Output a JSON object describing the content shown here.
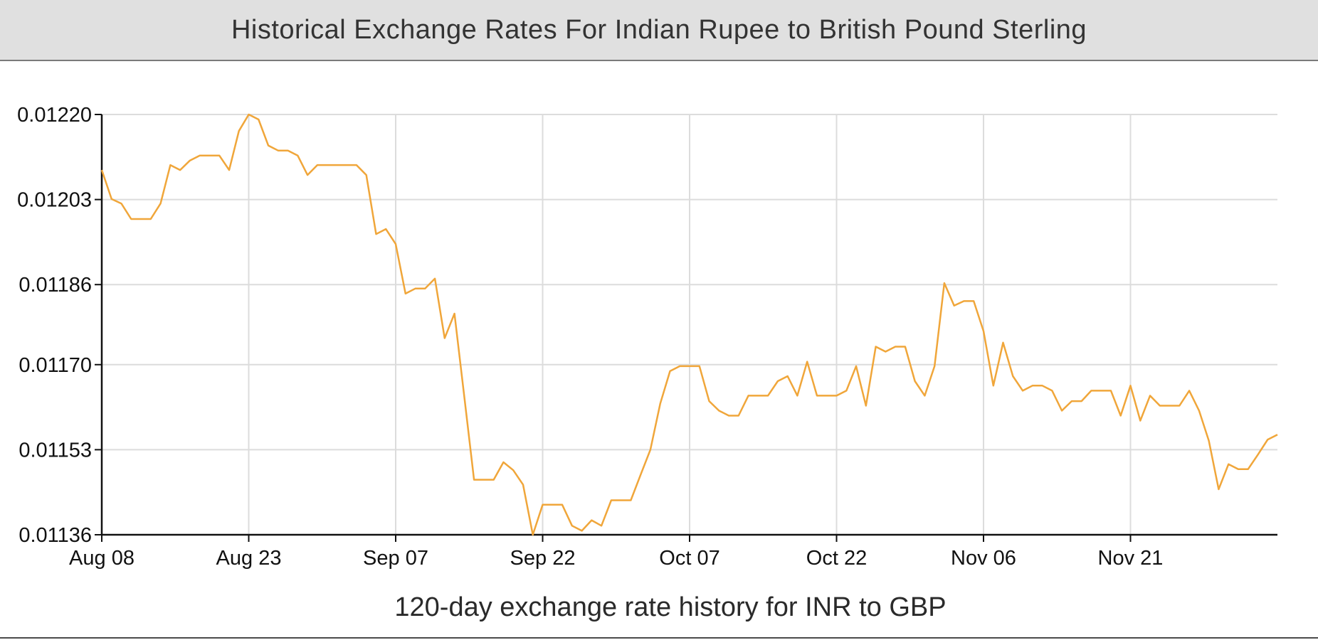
{
  "header": {
    "title": "Historical Exchange Rates For Indian Rupee to British Pound Sterling"
  },
  "colors": {
    "line": "#f0a63a",
    "grid": "#dcdcdc",
    "axis": "#111111",
    "title_bg": "#e0e0e0"
  },
  "chart_data": {
    "type": "line",
    "title": "Historical Exchange Rates For Indian Rupee to British Pound Sterling",
    "xlabel": "120-day exchange rate history for INR to GBP",
    "ylabel": "",
    "grid": true,
    "x_tick_labels": [
      "Aug 08",
      "Aug 23",
      "Sep 07",
      "Sep 22",
      "Oct 07",
      "Oct 22",
      "Nov 06",
      "Nov 21"
    ],
    "y_tick_labels": [
      "0.01220",
      "0.01203",
      "0.01186",
      "0.01170",
      "0.01153",
      "0.01136"
    ],
    "ylim": [
      0.01136,
      0.0122
    ],
    "x_day_range": [
      0,
      120
    ],
    "series": [
      {
        "values": [
          0.012089,
          0.012031,
          0.012022,
          0.011991,
          0.011991,
          0.011991,
          0.012022,
          0.012099,
          0.012089,
          0.012108,
          0.012118,
          0.012118,
          0.012118,
          0.012089,
          0.012167,
          0.0122,
          0.01219,
          0.012138,
          0.012128,
          0.012128,
          0.012118,
          0.012079,
          0.012099,
          0.012099,
          0.012099,
          0.012099,
          0.012099,
          0.012079,
          0.011961,
          0.011971,
          0.011941,
          0.011842,
          0.011852,
          0.011852,
          0.011872,
          0.011753,
          0.011802,
          0.011636,
          0.01147,
          0.01147,
          0.01147,
          0.011505,
          0.011489,
          0.01146,
          0.01136,
          0.01142,
          0.01142,
          0.01142,
          0.011378,
          0.011368,
          0.011389,
          0.011378,
          0.011429,
          0.011429,
          0.011429,
          0.01148,
          0.01153,
          0.011622,
          0.011687,
          0.011697,
          0.011697,
          0.011697,
          0.011627,
          0.011608,
          0.011598,
          0.011598,
          0.011638,
          0.011638,
          0.011638,
          0.011667,
          0.011677,
          0.011638,
          0.011706,
          0.011638,
          0.011638,
          0.011638,
          0.011648,
          0.011697,
          0.011618,
          0.011736,
          0.011726,
          0.011736,
          0.011736,
          0.011667,
          0.011638,
          0.011697,
          0.011863,
          0.011818,
          0.011827,
          0.011827,
          0.011767,
          0.011658,
          0.011744,
          0.011677,
          0.011648,
          0.011658,
          0.011658,
          0.011648,
          0.011608,
          0.011627,
          0.011627,
          0.011648,
          0.011648,
          0.011648,
          0.011598,
          0.011658,
          0.011588,
          0.011638,
          0.011618,
          0.011618,
          0.011618,
          0.011648,
          0.011608,
          0.011548,
          0.011451,
          0.011501,
          0.011491,
          0.011491,
          0.01152,
          0.01155,
          0.01156
        ]
      }
    ]
  }
}
